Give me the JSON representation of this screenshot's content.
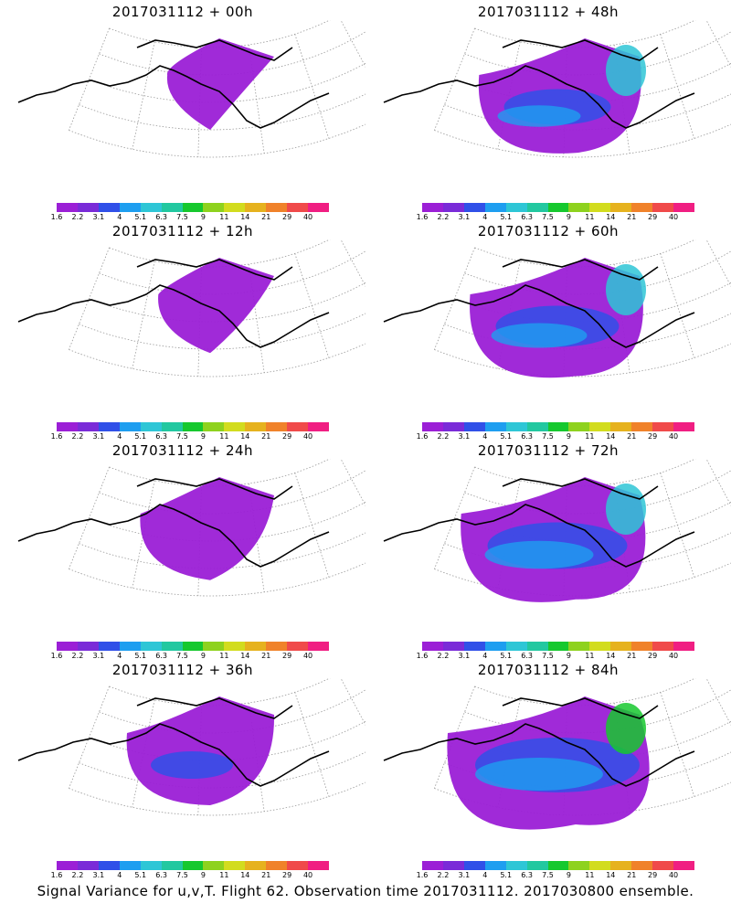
{
  "panels": [
    {
      "title": "2017031112 + 00h",
      "level": 0.05
    },
    {
      "title": "2017031112 + 12h",
      "level": 0.15
    },
    {
      "title": "2017031112 + 24h",
      "level": 0.35
    },
    {
      "title": "2017031112 + 36h",
      "level": 0.5
    },
    {
      "title": "2017031112 + 48h",
      "level": 0.65
    },
    {
      "title": "2017031112 + 60h",
      "level": 0.75
    },
    {
      "title": "2017031112 + 72h",
      "level": 0.85
    },
    {
      "title": "2017031112 + 84h",
      "level": 1.0
    }
  ],
  "colorbar": {
    "labels": [
      "1.6",
      "2.2",
      "3.1",
      "4",
      "5.1",
      "6.3",
      "7.5",
      "9",
      "11",
      "14",
      "21",
      "29",
      "40"
    ],
    "colors": [
      "#9b1fd6",
      "#7a2bd8",
      "#3050e8",
      "#1e9ef0",
      "#2ec6d6",
      "#22c8a0",
      "#16c82e",
      "#8ed21e",
      "#d2dc1e",
      "#e6b21e",
      "#f0822a",
      "#f04a4a",
      "#f01e82"
    ]
  },
  "caption": "Signal Variance for u,v,T. Flight 62. Observation time 2017031112. 2017030800 ensemble."
}
